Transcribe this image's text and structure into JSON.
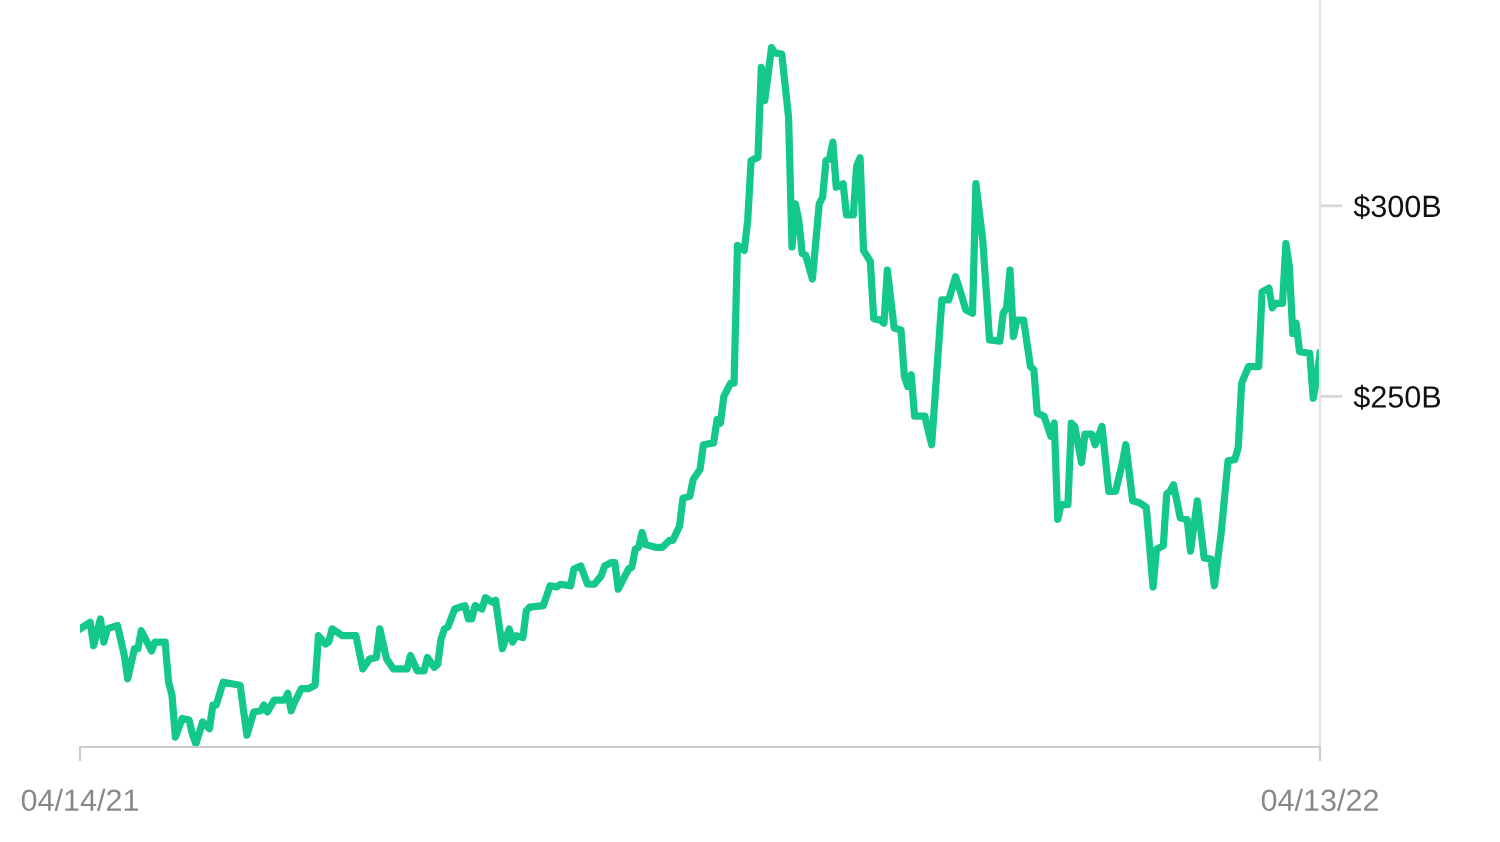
{
  "chart_data": {
    "type": "line",
    "color": "#14c88a",
    "x": [
      "2021-04-14",
      "2021-04-17",
      "2021-04-18",
      "2021-04-20",
      "2021-04-21",
      "2021-04-22",
      "2021-04-25",
      "2021-04-27",
      "2021-04-28",
      "2021-04-30",
      "2021-05-01",
      "2021-05-02",
      "2021-05-05",
      "2021-05-06",
      "2021-05-09",
      "2021-05-10",
      "2021-05-11",
      "2021-05-12",
      "2021-05-14",
      "2021-05-16",
      "2021-05-17",
      "2021-05-18",
      "2021-05-20",
      "2021-05-22",
      "2021-05-23",
      "2021-05-24",
      "2021-05-26",
      "2021-05-31",
      "2021-06-02",
      "2021-06-04",
      "2021-06-06",
      "2021-06-07",
      "2021-06-08",
      "2021-06-10",
      "2021-06-13",
      "2021-06-14",
      "2021-06-15",
      "2021-06-16",
      "2021-06-18",
      "2021-06-20",
      "2021-06-22",
      "2021-06-23",
      "2021-06-25",
      "2021-06-26",
      "2021-06-27",
      "2021-06-30",
      "2021-07-04",
      "2021-07-06",
      "2021-07-08",
      "2021-07-10",
      "2021-07-11",
      "2021-07-13",
      "2021-07-15",
      "2021-07-19",
      "2021-07-20",
      "2021-07-22",
      "2021-07-24",
      "2021-07-25",
      "2021-07-27",
      "2021-07-28",
      "2021-07-29",
      "2021-07-30",
      "2021-07-31",
      "2021-08-02",
      "2021-08-05",
      "2021-08-06",
      "2021-08-07",
      "2021-08-08",
      "2021-08-10",
      "2021-08-11",
      "2021-08-13",
      "2021-08-14",
      "2021-08-16",
      "2021-08-18",
      "2021-08-19",
      "2021-08-20",
      "2021-08-22",
      "2021-08-23",
      "2021-08-24",
      "2021-08-28",
      "2021-08-30",
      "2021-09-01",
      "2021-09-02",
      "2021-09-05",
      "2021-09-06",
      "2021-09-08",
      "2021-09-10",
      "2021-09-12",
      "2021-09-14",
      "2021-09-15",
      "2021-09-17",
      "2021-09-18",
      "2021-09-19",
      "2021-09-22",
      "2021-09-23",
      "2021-09-24",
      "2021-09-25",
      "2021-09-26",
      "2021-09-27",
      "2021-09-30",
      "2021-10-02",
      "2021-10-04",
      "2021-10-05",
      "2021-10-07",
      "2021-10-08",
      "2021-10-10",
      "2021-10-11",
      "2021-10-13",
      "2021-10-14",
      "2021-10-17",
      "2021-10-18",
      "2021-10-19",
      "2021-10-20",
      "2021-10-22",
      "2021-10-23",
      "2021-10-24",
      "2021-10-26",
      "2021-10-27",
      "2021-10-28",
      "2021-10-30",
      "2021-10-31",
      "2021-11-01",
      "2021-11-02",
      "2021-11-03",
      "2021-11-04",
      "2021-11-06",
      "2021-11-08",
      "2021-11-09",
      "2021-11-10",
      "2021-11-11",
      "2021-11-12",
      "2021-11-13",
      "2021-11-15",
      "2021-11-17",
      "2021-11-18",
      "2021-11-19",
      "2021-11-20",
      "2021-11-21",
      "2021-11-22",
      "2021-11-24",
      "2021-11-25",
      "2021-11-27",
      "2021-11-28",
      "2021-11-29",
      "2021-11-30",
      "2021-12-02",
      "2021-12-03",
      "2021-12-05",
      "2021-12-06",
      "2021-12-07",
      "2021-12-09",
      "2021-12-11",
      "2021-12-12",
      "2021-12-13",
      "2021-12-14",
      "2021-12-15",
      "2021-12-18",
      "2021-12-20",
      "2021-12-23",
      "2021-12-25",
      "2021-12-27",
      "2021-12-28",
      "2021-12-30",
      "2022-01-01",
      "2022-01-02",
      "2022-01-04",
      "2022-01-05",
      "2022-01-06",
      "2022-01-09",
      "2022-01-10",
      "2022-01-11",
      "2022-01-12",
      "2022-01-13",
      "2022-01-14",
      "2022-01-16",
      "2022-01-18",
      "2022-01-19",
      "2022-01-20",
      "2022-01-22",
      "2022-01-24",
      "2022-01-25",
      "2022-01-26",
      "2022-01-27",
      "2022-01-29",
      "2022-01-30",
      "2022-01-31",
      "2022-02-02",
      "2022-02-03",
      "2022-02-05",
      "2022-02-06",
      "2022-02-08",
      "2022-02-10",
      "2022-02-12",
      "2022-02-14",
      "2022-02-15",
      "2022-02-17",
      "2022-02-19",
      "2022-02-21",
      "2022-02-23",
      "2022-02-24",
      "2022-02-26",
      "2022-02-27",
      "2022-02-28",
      "2022-03-01",
      "2022-03-03",
      "2022-03-05",
      "2022-03-06",
      "2022-03-07",
      "2022-03-08",
      "2022-03-10",
      "2022-03-12",
      "2022-03-13",
      "2022-03-15",
      "2022-03-17",
      "2022-03-19",
      "2022-03-20",
      "2022-03-21",
      "2022-03-23",
      "2022-03-26",
      "2022-03-27",
      "2022-03-29",
      "2022-03-30",
      "2022-03-31",
      "2022-04-02",
      "2022-04-03",
      "2022-04-04",
      "2022-04-05",
      "2022-04-06",
      "2022-04-07",
      "2022-04-10",
      "2022-04-11",
      "2022-04-12",
      "2022-04-13"
    ],
    "values": [
      189.0,
      190.7,
      184.6,
      191.6,
      185.5,
      189.0,
      189.9,
      182.0,
      175.9,
      183.8,
      183.8,
      188.5,
      183.2,
      185.5,
      185.5,
      175.0,
      171.6,
      160.6,
      165.5,
      165.1,
      161.4,
      158.8,
      164.6,
      162.8,
      169.0,
      169.0,
      175.0,
      174.2,
      161.1,
      167.2,
      167.5,
      169.0,
      167.2,
      170.3,
      170.3,
      172.1,
      167.5,
      169.8,
      173.3,
      173.3,
      174.2,
      187.2,
      185.0,
      185.5,
      189.0,
      187.2,
      187.2,
      178.5,
      181.1,
      181.5,
      189.0,
      181.1,
      178.5,
      178.5,
      182.0,
      178.0,
      178.0,
      181.5,
      178.9,
      179.7,
      186.4,
      189.0,
      189.5,
      194.2,
      195.1,
      191.6,
      191.6,
      195.1,
      194.2,
      197.2,
      196.0,
      196.5,
      183.8,
      189.0,
      185.5,
      187.2,
      186.7,
      193.7,
      194.7,
      195.1,
      200.3,
      200.0,
      200.7,
      200.3,
      204.7,
      205.5,
      200.7,
      200.7,
      202.9,
      205.5,
      206.4,
      206.4,
      199.4,
      204.7,
      205.2,
      209.9,
      210.4,
      214.3,
      211.1,
      210.4,
      210.4,
      212.2,
      212.2,
      216.0,
      223.3,
      223.8,
      228.2,
      230.8,
      237.3,
      237.8,
      243.9,
      243.0,
      250.0,
      253.5,
      253.5,
      289.6,
      288.3,
      296.2,
      311.9,
      312.7,
      336.3,
      327.6,
      334.5,
      341.5,
      340.1,
      339.8,
      323.2,
      289.2,
      300.5,
      296.2,
      287.5,
      287.1,
      280.8,
      300.5,
      302.3,
      311.9,
      312.2,
      316.7,
      304.9,
      305.8,
      297.6,
      297.6,
      310.5,
      312.6,
      288.3,
      285.4,
      270.4,
      270.0,
      269.2,
      283.1,
      267.9,
      267.4,
      255.2,
      252.6,
      255.7,
      244.8,
      244.8,
      237.3,
      275.3,
      275.3,
      281.4,
      278.8,
      272.7,
      271.8,
      305.8,
      291.0,
      277.9,
      264.8,
      264.5,
      271.8,
      273.2,
      283.1,
      265.7,
      270.0,
      270.0,
      257.8,
      257.0,
      245.6,
      244.8,
      239.5,
      243.0,
      217.7,
      221.6,
      221.6,
      243.0,
      242.1,
      232.6,
      240.1,
      240.1,
      237.3,
      242.1,
      225.1,
      225.1,
      232.6,
      237.3,
      222.6,
      222.1,
      220.9,
      200.0,
      209.9,
      210.8,
      224.4,
      225.1,
      226.8,
      218.1,
      217.7,
      209.4,
      216.0,
      222.6,
      207.6,
      207.3,
      200.3,
      214.3,
      233.1,
      233.4,
      236.6,
      253.5,
      257.8,
      257.8,
      277.4,
      278.4,
      273.2,
      274.4,
      274.4,
      290.1,
      284.0,
      266.5,
      269.2,
      261.7,
      261.3,
      249.5,
      254.4,
      261.3
    ],
    "xlim": [
      "2021-04-14",
      "2022-04-13"
    ],
    "xticks": [
      {
        "value": "2021-04-14",
        "label": "04/14/21"
      },
      {
        "value": "2022-04-13",
        "label": "04/13/22"
      }
    ],
    "ylim": [
      158,
      354
    ],
    "yticks": [
      {
        "value": 300,
        "label": "$300B"
      },
      {
        "value": 250,
        "label": "$250B"
      }
    ],
    "marker": "none",
    "line_style": "solid",
    "grid": false
  }
}
